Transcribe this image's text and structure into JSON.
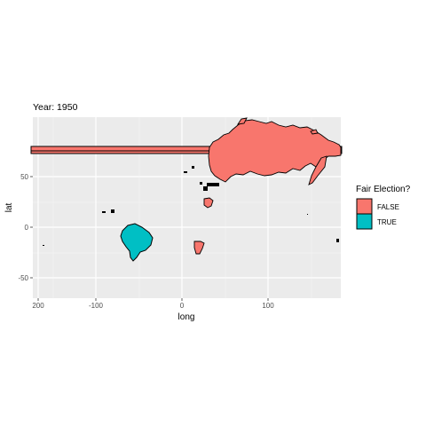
{
  "chart_data": {
    "type": "map",
    "title": "Year: 1950",
    "xlabel": "long",
    "ylabel": "lat",
    "x_ticks": [
      "200",
      "-100",
      "0",
      "100"
    ],
    "y_ticks": [
      "50",
      "0",
      "-50"
    ],
    "legend": {
      "title": "Fair Election?",
      "placement": "right",
      "entries": [
        {
          "label": "FALSE",
          "color": "#F8766D"
        },
        {
          "label": "TRUE",
          "color": "#00BFC4"
        }
      ]
    },
    "regions": [
      {
        "region": "Brazil",
        "fair_election": "TRUE"
      },
      {
        "region": "Soviet Union",
        "fair_election": "FALSE"
      },
      {
        "region": "Middle East",
        "fair_election": "FALSE"
      },
      {
        "region": "Southern Africa",
        "fair_election": "FALSE"
      },
      {
        "region": "Wrapped polygon band",
        "fair_election": "FALSE"
      }
    ],
    "panel_background": "#EBEBEB",
    "grid": true
  }
}
